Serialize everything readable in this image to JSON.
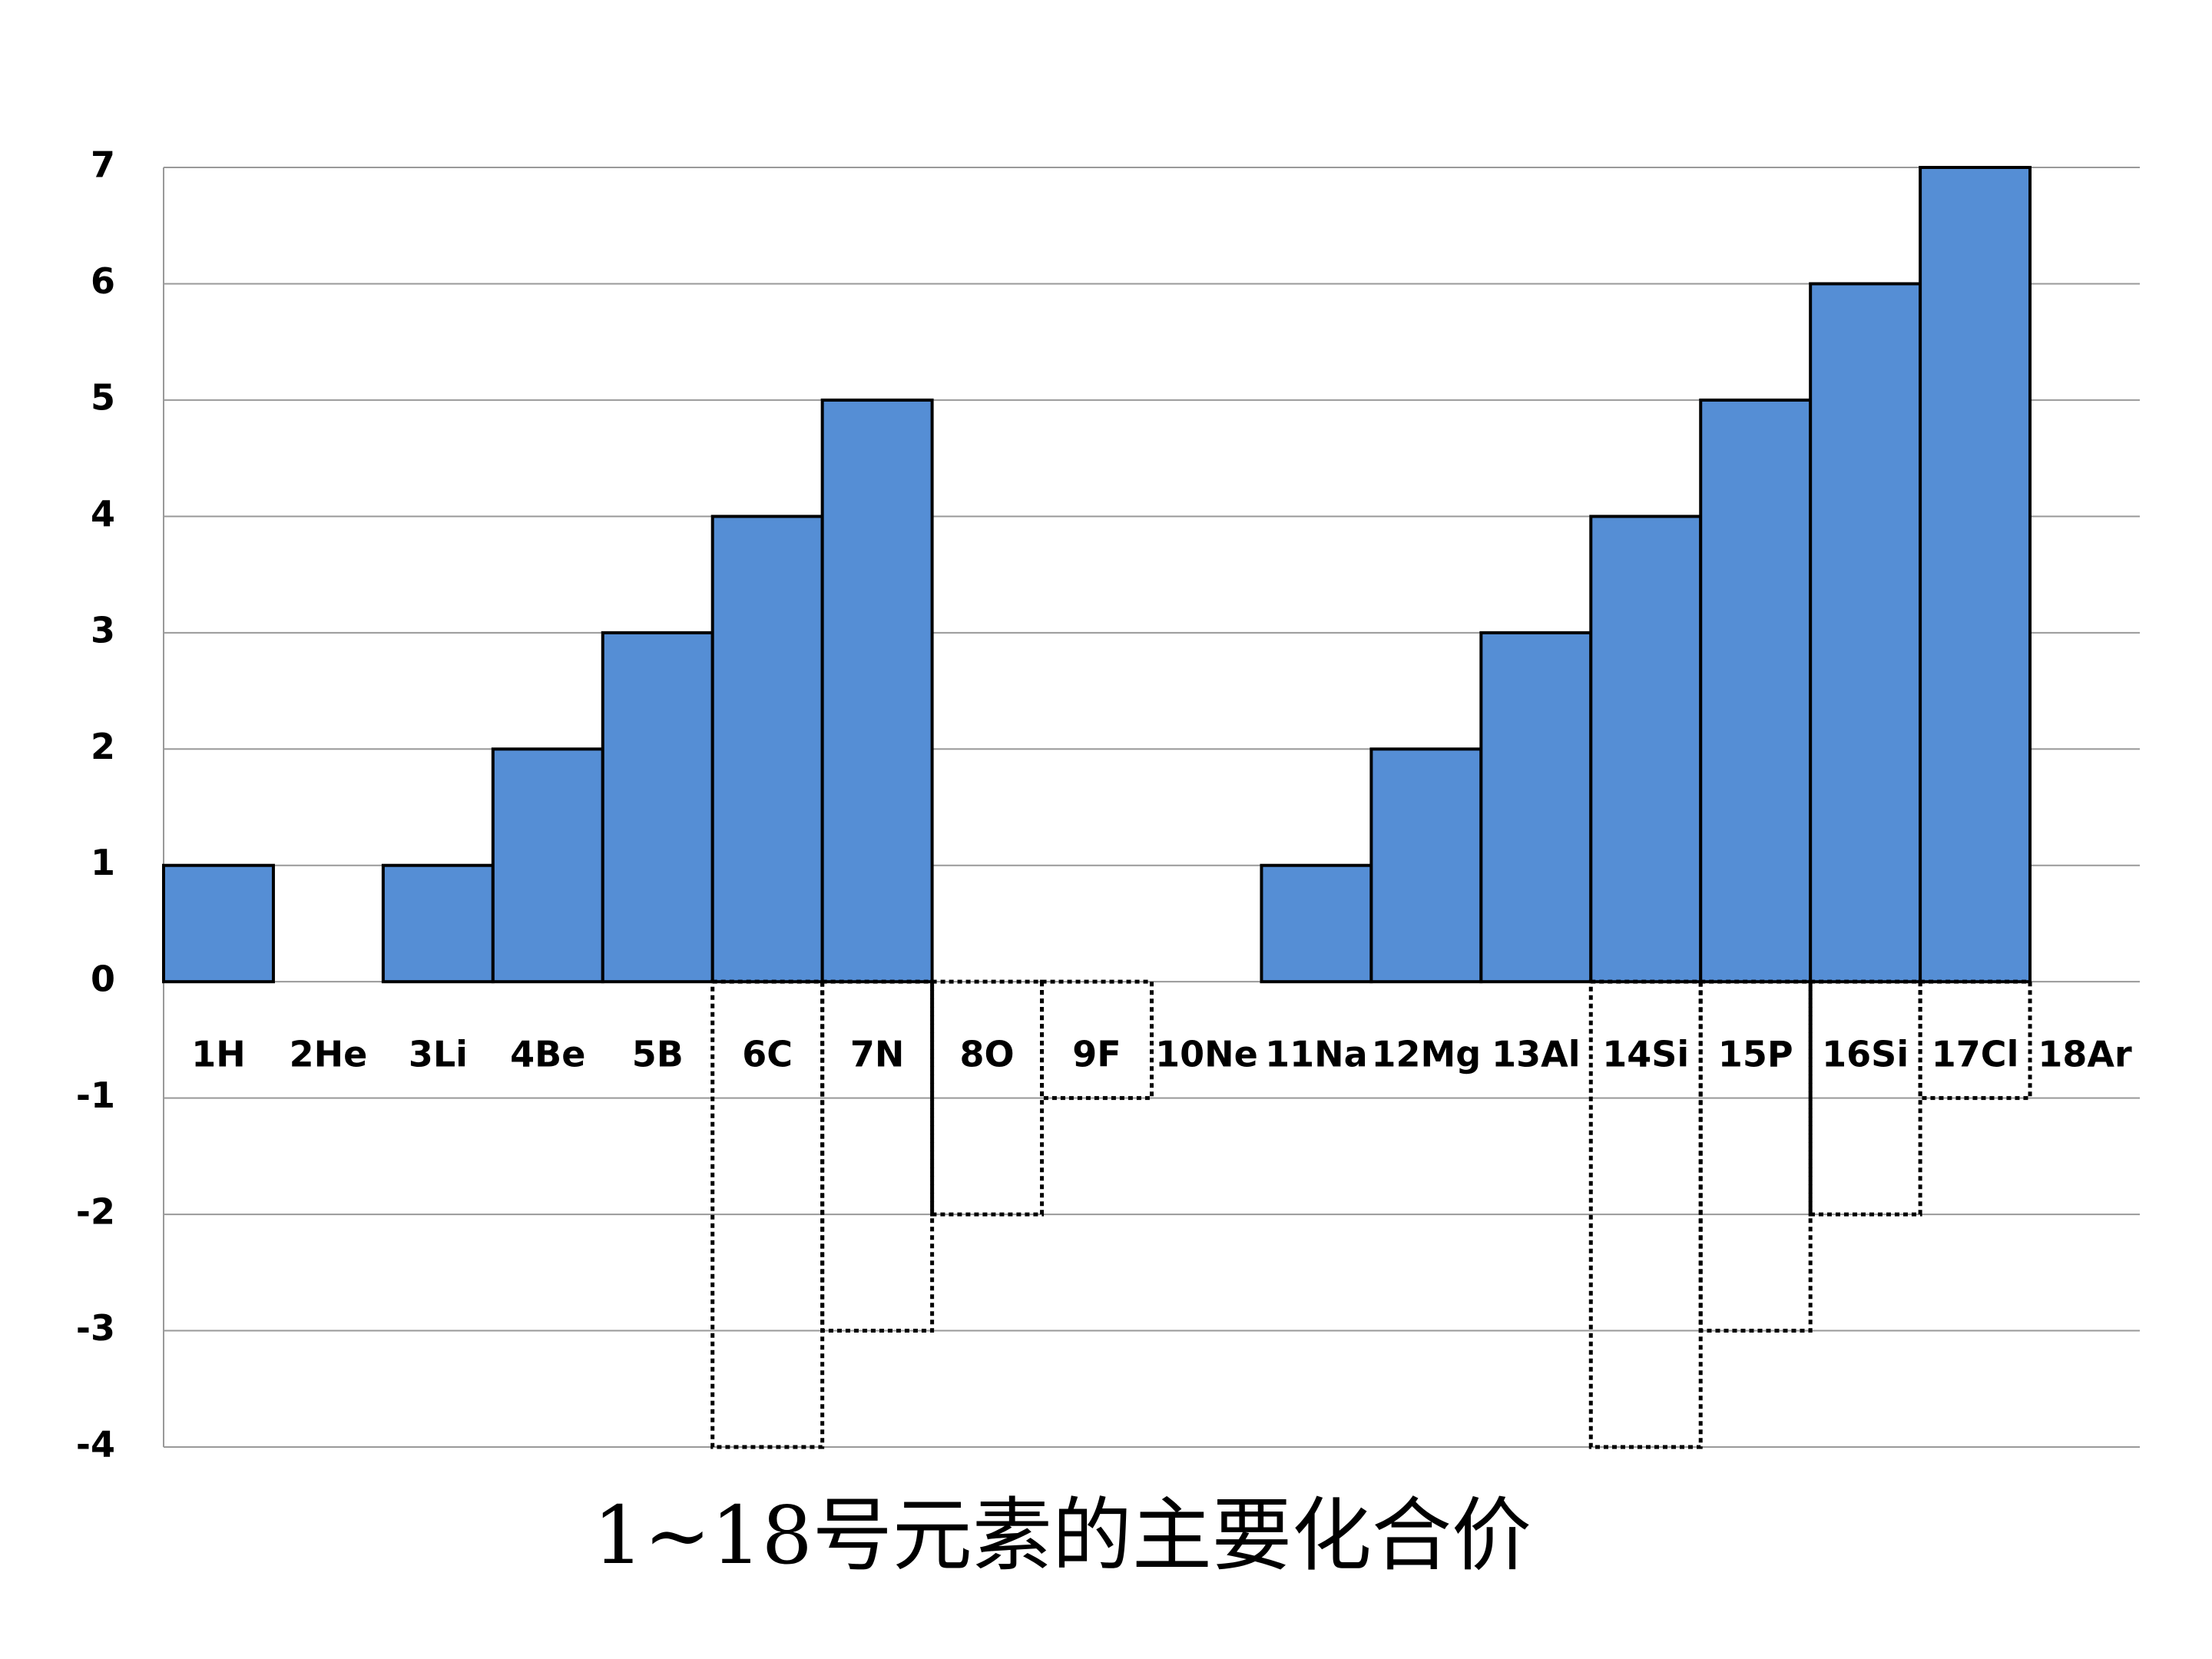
{
  "chart_data": {
    "type": "bar",
    "title": "1~18号元素的主要化合价",
    "categories": [
      "1H",
      "2He",
      "3Li",
      "4Be",
      "5B",
      "6C",
      "7N",
      "8O",
      "9F",
      "10Ne",
      "11Na",
      "12Mg",
      "13Al",
      "14Si",
      "15P",
      "16Si",
      "17Cl",
      "18Ar"
    ],
    "series": [
      {
        "color": "#558ed5",
        "border_style": "solid",
        "values": [
          1,
          null,
          1,
          2,
          3,
          4,
          5,
          null,
          null,
          null,
          1,
          2,
          3,
          4,
          5,
          6,
          7,
          null
        ]
      },
      {
        "color": "none",
        "border_style": "dotted",
        "values": [
          null,
          null,
          null,
          null,
          null,
          -4,
          -3,
          -2,
          -1,
          null,
          null,
          null,
          null,
          -4,
          -3,
          -2,
          -1,
          null
        ]
      }
    ],
    "ylim": [
      -4,
      7
    ],
    "yticks": [
      -4,
      -3,
      -2,
      -1,
      0,
      1,
      2,
      3,
      4,
      5,
      6,
      7
    ],
    "grid": true
  }
}
